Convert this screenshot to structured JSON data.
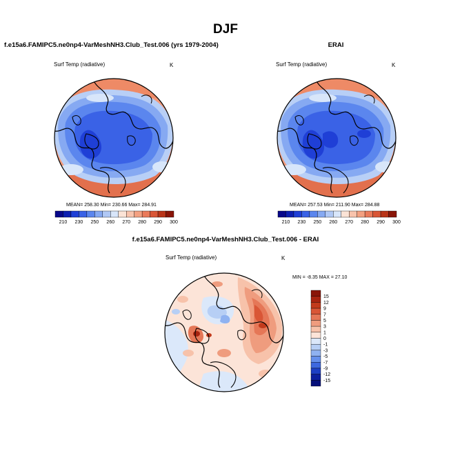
{
  "figure": {
    "title": "DJF"
  },
  "panels": {
    "model": {
      "title": "f.e15a6.FAMIPC5.ne0np4-VarMeshNH3.Club_Test.006 (yrs 1979-2004)",
      "variable": "Surf Temp (radiative)",
      "units": "K",
      "stats": "MEAN= 258.30   Min= 230.66   Max= 284.91"
    },
    "obs": {
      "title": "ERAI",
      "variable": "Surf Temp (radiative)",
      "units": "K",
      "stats": "MEAN= 257.53   Min= 211.90   Max= 284.88"
    },
    "diff": {
      "title": "f.e15a6.FAMIPC5.ne0np4-VarMeshNH3.Club_Test.006 - ERAI",
      "variable": "Surf Temp (radiative)",
      "units": "K",
      "stats": "MIN =  -8.35 MAX =  27.10"
    }
  },
  "colorbars": {
    "abs": {
      "labels": [
        "210",
        "230",
        "250",
        "260",
        "270",
        "280",
        "290",
        "300"
      ],
      "colors": [
        "#08088a",
        "#0d1fb0",
        "#1f3fd6",
        "#3a62e6",
        "#5b86ee",
        "#86a9f2",
        "#b0c8f5",
        "#d8e6fa",
        "#fbe3d6",
        "#f8c3ac",
        "#f3a081",
        "#ea7a5a",
        "#d95636",
        "#b93418",
        "#8a1508"
      ]
    },
    "diff": {
      "labels": [
        "15",
        "12",
        "9",
        "7",
        "5",
        "3",
        "1",
        "0",
        "-1",
        "-3",
        "-5",
        "-7",
        "-9",
        "-12",
        "-15"
      ],
      "colors": [
        "#8a1508",
        "#a82410",
        "#c23a1c",
        "#d95636",
        "#e57757",
        "#ef9c7e",
        "#f7c2aa",
        "#fce4d8",
        "#dbe8fa",
        "#b7cff5",
        "#8fb2f1",
        "#6590ec",
        "#3d68df",
        "#1d3fc4",
        "#0c1f9e",
        "#06107a"
      ]
    }
  }
}
